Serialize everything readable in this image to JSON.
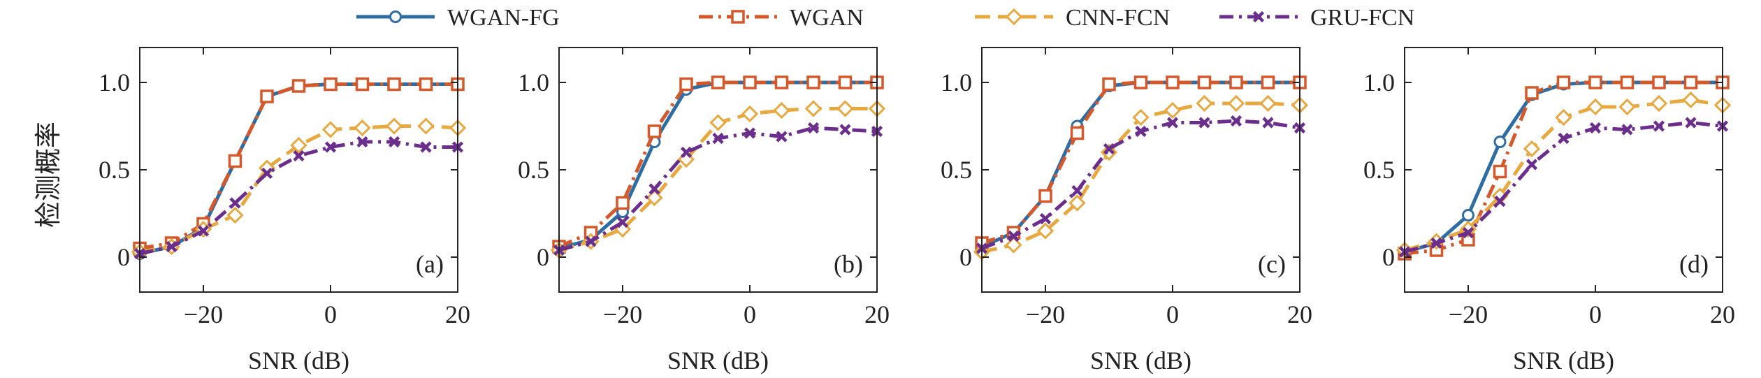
{
  "legend": [
    {
      "name": "WGAN-FG",
      "color": "#2E6DA4",
      "marker": "circle",
      "dash": "solid"
    },
    {
      "name": "WGAN",
      "color": "#D4582A",
      "marker": "square",
      "dash": "dashdot"
    },
    {
      "name": "CNN-FCN",
      "color": "#E8A83E",
      "marker": "diamond",
      "dash": "dash"
    },
    {
      "name": "GRU-FCN",
      "color": "#6B2E8C",
      "marker": "x",
      "dash": "dashdot"
    }
  ],
  "ylabel": "检测概率",
  "chart_data": [
    {
      "type": "line",
      "label": "(a)",
      "xlabel": "SNR (dB)",
      "xlim": [
        -30,
        20
      ],
      "ylim": [
        -0.2,
        1.2
      ],
      "xticks": [
        -20,
        0,
        20
      ],
      "xtick_labels": [
        "−20",
        "0",
        "20"
      ],
      "yticks": [
        0,
        0.5,
        1.0
      ],
      "ytick_labels": [
        "0",
        "0.5",
        "1.0"
      ],
      "x": [
        -30,
        -25,
        -20,
        -15,
        -10,
        -5,
        0,
        5,
        10,
        15,
        20
      ],
      "series": [
        {
          "name": "WGAN-FG",
          "values": [
            0.02,
            0.06,
            0.17,
            0.55,
            0.92,
            0.98,
            0.99,
            0.99,
            0.99,
            0.99,
            0.99
          ]
        },
        {
          "name": "WGAN",
          "values": [
            0.05,
            0.08,
            0.19,
            0.55,
            0.92,
            0.98,
            0.99,
            0.99,
            0.99,
            0.99,
            0.99
          ]
        },
        {
          "name": "CNN-FCN",
          "values": [
            0.03,
            0.06,
            0.16,
            0.24,
            0.51,
            0.64,
            0.73,
            0.74,
            0.75,
            0.75,
            0.74
          ]
        },
        {
          "name": "GRU-FCN",
          "values": [
            0.02,
            0.06,
            0.15,
            0.31,
            0.48,
            0.58,
            0.63,
            0.66,
            0.66,
            0.63,
            0.63
          ]
        }
      ]
    },
    {
      "type": "line",
      "label": "(b)",
      "xlabel": "SNR (dB)",
      "xlim": [
        -30,
        20
      ],
      "ylim": [
        -0.2,
        1.2
      ],
      "xticks": [
        -20,
        0,
        20
      ],
      "xtick_labels": [
        "−20",
        "0",
        "20"
      ],
      "yticks": [
        0,
        0.5,
        1.0
      ],
      "ytick_labels": [
        "0",
        "0.5",
        "1.0"
      ],
      "x": [
        -30,
        -25,
        -20,
        -15,
        -10,
        -5,
        0,
        5,
        10,
        15,
        20
      ],
      "series": [
        {
          "name": "WGAN-FG",
          "values": [
            0.05,
            0.1,
            0.26,
            0.66,
            0.96,
            1.0,
            1.0,
            1.0,
            1.0,
            1.0,
            1.0
          ]
        },
        {
          "name": "WGAN",
          "values": [
            0.06,
            0.14,
            0.31,
            0.72,
            0.99,
            1.0,
            1.0,
            1.0,
            1.0,
            1.0,
            1.0
          ]
        },
        {
          "name": "CNN-FCN",
          "values": [
            0.04,
            0.09,
            0.16,
            0.34,
            0.56,
            0.77,
            0.82,
            0.84,
            0.85,
            0.85,
            0.85
          ]
        },
        {
          "name": "GRU-FCN",
          "values": [
            0.04,
            0.09,
            0.2,
            0.39,
            0.6,
            0.68,
            0.71,
            0.69,
            0.74,
            0.73,
            0.72
          ]
        }
      ]
    },
    {
      "type": "line",
      "label": "(c)",
      "xlabel": "SNR (dB)",
      "xlim": [
        -30,
        20
      ],
      "ylim": [
        -0.2,
        1.2
      ],
      "xticks": [
        -20,
        0,
        20
      ],
      "xtick_labels": [
        "−20",
        "0",
        "20"
      ],
      "yticks": [
        0,
        0.5,
        1.0
      ],
      "ytick_labels": [
        "0",
        "0.5",
        "1.0"
      ],
      "x": [
        -30,
        -25,
        -20,
        -15,
        -10,
        -5,
        0,
        5,
        10,
        15,
        20
      ],
      "series": [
        {
          "name": "WGAN-FG",
          "values": [
            0.06,
            0.14,
            0.35,
            0.75,
            0.98,
            1.0,
            1.0,
            1.0,
            1.0,
            1.0,
            1.0
          ]
        },
        {
          "name": "WGAN",
          "values": [
            0.08,
            0.14,
            0.35,
            0.71,
            0.99,
            1.0,
            1.0,
            1.0,
            1.0,
            1.0,
            1.0
          ]
        },
        {
          "name": "CNN-FCN",
          "values": [
            0.03,
            0.07,
            0.15,
            0.31,
            0.6,
            0.8,
            0.84,
            0.88,
            0.88,
            0.88,
            0.87
          ]
        },
        {
          "name": "GRU-FCN",
          "values": [
            0.05,
            0.12,
            0.22,
            0.38,
            0.62,
            0.72,
            0.77,
            0.77,
            0.78,
            0.77,
            0.74
          ]
        }
      ]
    },
    {
      "type": "line",
      "label": "(d)",
      "xlabel": "SNR (dB)",
      "xlim": [
        -30,
        20
      ],
      "ylim": [
        -0.2,
        1.2
      ],
      "xticks": [
        -20,
        0,
        20
      ],
      "xtick_labels": [
        "−20",
        "0",
        "20"
      ],
      "yticks": [
        0,
        0.5,
        1.0
      ],
      "ytick_labels": [
        "0",
        "0.5",
        "1.0"
      ],
      "x": [
        -30,
        -25,
        -20,
        -15,
        -10,
        -5,
        0,
        5,
        10,
        15,
        20
      ],
      "series": [
        {
          "name": "WGAN-FG",
          "values": [
            0.03,
            0.08,
            0.24,
            0.66,
            0.93,
            0.99,
            1.0,
            1.0,
            1.0,
            1.0,
            1.0
          ]
        },
        {
          "name": "WGAN",
          "values": [
            0.02,
            0.04,
            0.1,
            0.49,
            0.94,
            1.0,
            1.0,
            1.0,
            1.0,
            1.0,
            1.0
          ]
        },
        {
          "name": "CNN-FCN",
          "values": [
            0.04,
            0.09,
            0.16,
            0.35,
            0.62,
            0.8,
            0.86,
            0.86,
            0.88,
            0.9,
            0.87
          ]
        },
        {
          "name": "GRU-FCN",
          "values": [
            0.03,
            0.08,
            0.14,
            0.32,
            0.53,
            0.68,
            0.74,
            0.73,
            0.75,
            0.77,
            0.75
          ]
        }
      ]
    }
  ]
}
